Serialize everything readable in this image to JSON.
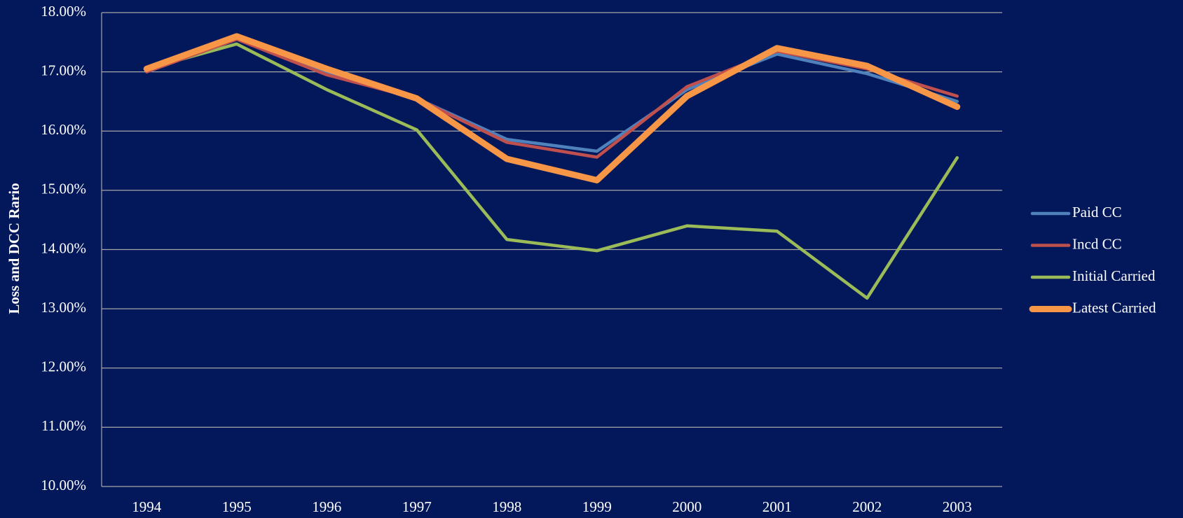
{
  "chart_data": {
    "type": "line",
    "y_label": "Loss and DCC Rario",
    "categories": [
      "1994",
      "1995",
      "1996",
      "1997",
      "1998",
      "1999",
      "2000",
      "2001",
      "2002",
      "2003"
    ],
    "series": [
      {
        "name": "Paid CC",
        "color": "#4f81bd",
        "values": [
          17.0,
          17.55,
          16.97,
          16.55,
          15.86,
          15.66,
          16.7,
          17.3,
          16.97,
          16.5
        ]
      },
      {
        "name": "Incd CC",
        "color": "#c0504d",
        "values": [
          17.0,
          17.55,
          16.95,
          16.55,
          15.81,
          15.56,
          16.75,
          17.35,
          17.05,
          16.59
        ]
      },
      {
        "name": "Initial Carried",
        "color": "#9bbb59",
        "values": [
          17.05,
          17.47,
          16.7,
          16.02,
          14.17,
          13.98,
          14.4,
          14.31,
          13.18,
          15.55
        ]
      },
      {
        "name": "Latest Carried",
        "color": "#f79646",
        "values": [
          17.05,
          17.6,
          17.05,
          16.55,
          15.53,
          15.17,
          16.59,
          17.4,
          17.1,
          16.41
        ]
      }
    ],
    "ylim": [
      10,
      18
    ],
    "yticks": [
      {
        "value": 10,
        "label": "10.00%"
      },
      {
        "value": 11,
        "label": "11.00%"
      },
      {
        "value": 12,
        "label": "12.00%"
      },
      {
        "value": 13,
        "label": "13.00%"
      },
      {
        "value": 14,
        "label": "14.00%"
      },
      {
        "value": 15,
        "label": "15.00%"
      },
      {
        "value": 16,
        "label": "16.00%"
      },
      {
        "value": 17,
        "label": "17.00%"
      },
      {
        "value": 18,
        "label": "18.00%"
      }
    ],
    "grid": true,
    "legend": "right",
    "background": "#03185a"
  }
}
